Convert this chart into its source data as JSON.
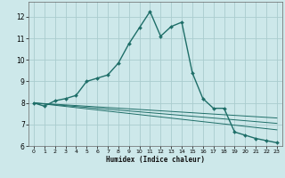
{
  "title": "",
  "xlabel": "Humidex (Indice chaleur)",
  "ylabel": "",
  "background_color": "#cde8ea",
  "grid_color": "#aaccce",
  "line_color": "#1e6e68",
  "xlim": [
    -0.5,
    23.5
  ],
  "ylim": [
    6.0,
    12.7
  ],
  "xticks": [
    0,
    1,
    2,
    3,
    4,
    5,
    6,
    7,
    8,
    9,
    10,
    11,
    12,
    13,
    14,
    15,
    16,
    17,
    18,
    19,
    20,
    21,
    22,
    23
  ],
  "yticks": [
    6,
    7,
    8,
    9,
    10,
    11,
    12
  ],
  "main_x": [
    0,
    1,
    2,
    3,
    4,
    5,
    6,
    7,
    8,
    9,
    10,
    11,
    12,
    13,
    14,
    15,
    16,
    17,
    18,
    19,
    20,
    21,
    22,
    23
  ],
  "main_y": [
    8.0,
    7.85,
    8.1,
    8.2,
    8.35,
    9.0,
    9.15,
    9.3,
    9.85,
    10.75,
    11.5,
    12.25,
    11.1,
    11.55,
    11.75,
    9.4,
    8.2,
    7.75,
    7.75,
    6.65,
    6.5,
    6.35,
    6.25,
    6.15
  ],
  "line2_x": [
    0,
    23
  ],
  "line2_y": [
    8.0,
    6.75
  ],
  "line3_x": [
    0,
    23
  ],
  "line3_y": [
    8.0,
    7.05
  ],
  "line4_x": [
    0,
    23
  ],
  "line4_y": [
    8.0,
    7.3
  ]
}
